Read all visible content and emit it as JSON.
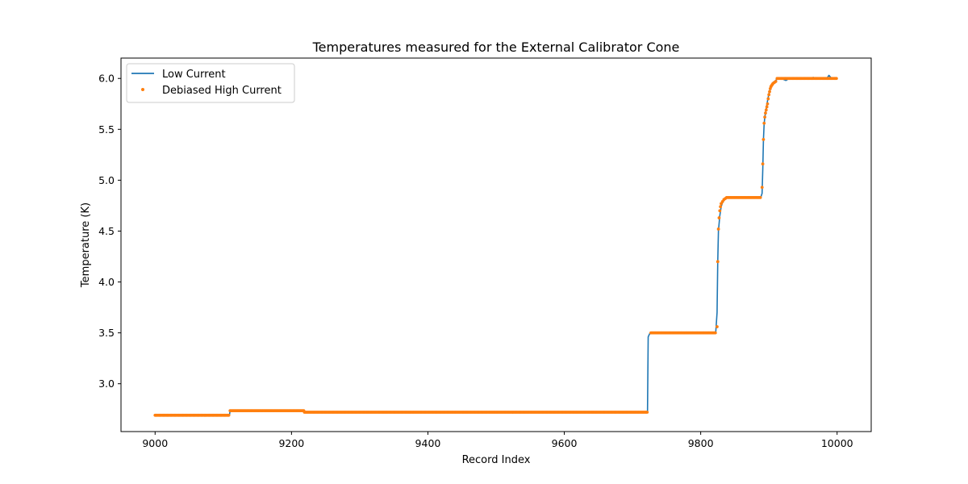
{
  "chart_data": {
    "type": "line",
    "title": "Temperatures measured for the External Calibrator Cone",
    "xlabel": "Record Index",
    "ylabel": "Temperature (K)",
    "xlim": [
      8950,
      10050
    ],
    "ylim": [
      2.53,
      6.2
    ],
    "xticks": [
      9000,
      9200,
      9400,
      9600,
      9800,
      10000
    ],
    "yticks": [
      3.0,
      3.5,
      4.0,
      4.5,
      5.0,
      5.5,
      6.0
    ],
    "grid": false,
    "legend_position": "upper-left",
    "series": [
      {
        "name": "Low Current",
        "kind": "line",
        "color": "#1f77b4",
        "x": [
          9000,
          9109,
          9110,
          9218,
          9219,
          9722,
          9723,
          9725,
          9728,
          9730,
          9800,
          9822,
          9824,
          9825,
          9826,
          9828,
          9830,
          9832,
          9835,
          9840,
          9850,
          9870,
          9888,
          9890,
          9891,
          9892,
          9893,
          9894,
          9896,
          9898,
          9900,
          9903,
          9906,
          9910,
          9913,
          9918,
          9925,
          9930,
          9935,
          9940,
          9950,
          9960,
          9965,
          9970,
          9980,
          9985,
          9988,
          9992,
          10000
        ],
        "y": [
          2.69,
          2.69,
          2.735,
          2.735,
          2.72,
          2.72,
          3.46,
          3.49,
          3.5,
          3.5,
          3.5,
          3.5,
          3.7,
          4.2,
          4.5,
          4.65,
          4.74,
          4.78,
          4.81,
          4.83,
          4.83,
          4.83,
          4.83,
          4.87,
          5.1,
          5.4,
          5.55,
          5.62,
          5.7,
          5.78,
          5.85,
          5.92,
          5.96,
          5.98,
          6.0,
          6.0,
          5.98,
          6.0,
          6.0,
          5.995,
          6.0,
          6.0,
          6.01,
          5.995,
          6.0,
          6.0,
          6.03,
          6.0,
          6.0
        ]
      },
      {
        "name": "Debiased High Current",
        "kind": "scatter",
        "color": "#ff7f0e",
        "points": [
          [
            9824,
            3.56
          ],
          [
            9825,
            4.2
          ],
          [
            9826,
            4.52
          ],
          [
            9827,
            4.63
          ],
          [
            9828,
            4.7
          ],
          [
            9829,
            4.74
          ],
          [
            9830,
            4.77
          ],
          [
            9832,
            4.79
          ],
          [
            9834,
            4.81
          ],
          [
            9836,
            4.82
          ],
          [
            9890,
            4.93
          ],
          [
            9891,
            5.16
          ],
          [
            9892,
            5.4
          ],
          [
            9893,
            5.56
          ],
          [
            9894,
            5.62
          ],
          [
            9895,
            5.66
          ],
          [
            9896,
            5.69
          ],
          [
            9897,
            5.72
          ],
          [
            9898,
            5.75
          ],
          [
            9899,
            5.8
          ],
          [
            9900,
            5.84
          ],
          [
            9901,
            5.87
          ],
          [
            9902,
            5.9
          ],
          [
            9903,
            5.92
          ],
          [
            9904,
            5.93
          ],
          [
            9905,
            5.94
          ],
          [
            9906,
            5.95
          ],
          [
            9908,
            5.96
          ],
          [
            9910,
            5.97
          ]
        ]
      }
    ]
  }
}
